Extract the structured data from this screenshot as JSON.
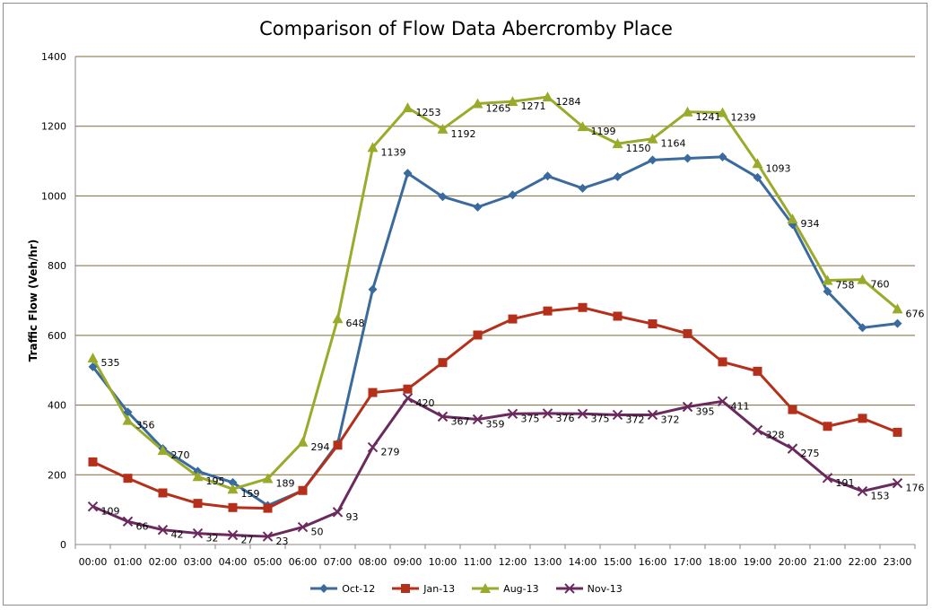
{
  "chart_data": {
    "type": "line",
    "title": "Comparison of Flow Data Abercromby Place",
    "xlabel": "",
    "ylabel": "Traffic Flow (Veh/hr)",
    "ylim": [
      0,
      1400
    ],
    "yticks": [
      0,
      200,
      400,
      600,
      800,
      1000,
      1200,
      1400
    ],
    "grid": "horizontal",
    "legend_position": "bottom",
    "categories": [
      "00:00",
      "01:00",
      "02:00",
      "03:00",
      "04:00",
      "05:00",
      "06:00",
      "07:00",
      "08:00",
      "09:00",
      "10:00",
      "11:00",
      "12:00",
      "13:00",
      "14:00",
      "15:00",
      "16:00",
      "17:00",
      "18:00",
      "19:00",
      "20:00",
      "21:00",
      "22:00",
      "23:00"
    ],
    "series": [
      {
        "name": "Oct-12",
        "color": "#3a6a9e",
        "marker": "diamond",
        "labels": false,
        "values": [
          510,
          380,
          275,
          210,
          178,
          112,
          155,
          290,
          732,
          1065,
          998,
          968,
          1003,
          1057,
          1022,
          1055,
          1103,
          1108,
          1112,
          1053,
          918,
          726,
          622,
          634
        ]
      },
      {
        "name": "Jan-13",
        "color": "#b5301b",
        "marker": "square",
        "labels": false,
        "values": [
          237,
          190,
          148,
          118,
          106,
          104,
          155,
          285,
          436,
          446,
          522,
          601,
          647,
          670,
          680,
          655,
          633,
          605,
          524,
          497,
          387,
          339,
          362,
          322
        ]
      },
      {
        "name": "Aug-13",
        "color": "#9aaa2a",
        "marker": "triangle",
        "labels": true,
        "values": [
          535,
          356,
          270,
          195,
          159,
          189,
          294,
          648,
          1139,
          1253,
          1192,
          1265,
          1271,
          1284,
          1199,
          1150,
          1164,
          1241,
          1239,
          1093,
          934,
          758,
          760,
          676
        ]
      },
      {
        "name": "Nov-13",
        "color": "#6a2a5e",
        "marker": "x",
        "labels": true,
        "values": [
          109,
          66,
          42,
          32,
          27,
          23,
          50,
          93,
          279,
          420,
          367,
          359,
          375,
          376,
          375,
          372,
          372,
          395,
          411,
          328,
          275,
          191,
          153,
          176
        ]
      }
    ]
  }
}
